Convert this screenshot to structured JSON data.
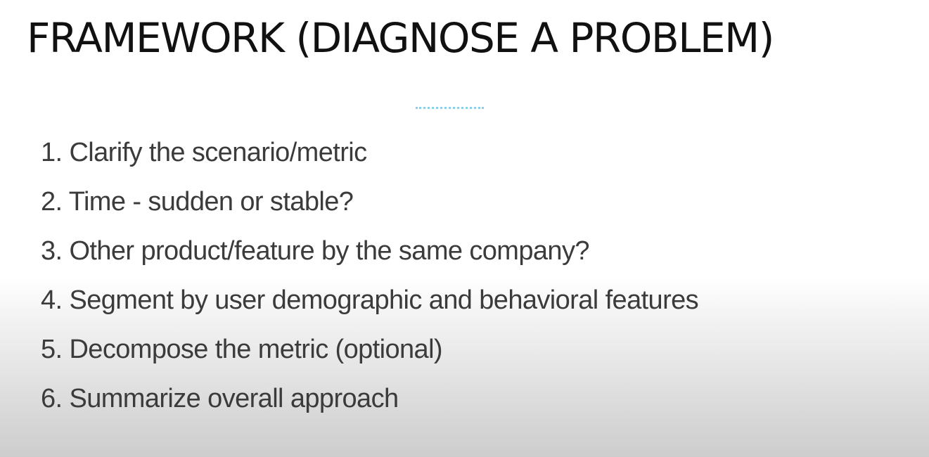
{
  "slide": {
    "title": "FRAMEWORK (DIAGNOSE A PROBLEM)",
    "steps": [
      "1.  Clarify the scenario/metric",
      "2. Time - sudden or stable?",
      "3. Other product/feature by the same company?",
      "4. Segment by user demographic and behavioral features",
      "5. Decompose the metric (optional)",
      "6. Summarize overall approach"
    ]
  },
  "colors": {
    "title_text": "#111111",
    "body_text": "#3b3b3b",
    "divider_accent": "#8fcfe6",
    "background_top": "#ffffff",
    "background_bottom": "#cdcdcd"
  }
}
